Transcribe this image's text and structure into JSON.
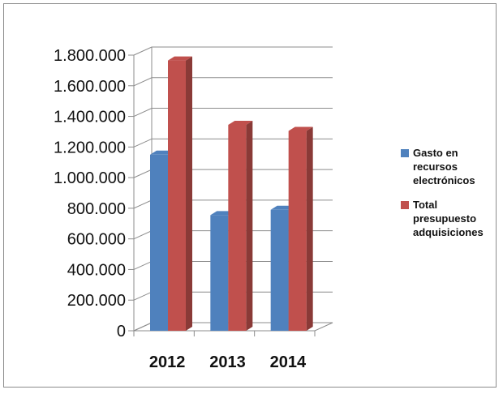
{
  "chart_data": {
    "type": "bar",
    "style": "3d-clustered-column",
    "categories": [
      "2012",
      "2013",
      "2014"
    ],
    "series": [
      {
        "name": "Gasto en recursos electrónicos",
        "values": [
          1150000,
          755000,
          790000
        ],
        "color": "#4f81bd"
      },
      {
        "name": "Total presupuesto adquisiciones",
        "values": [
          1765000,
          1345000,
          1305000
        ],
        "color": "#c0504d"
      }
    ],
    "yticks": [
      "0",
      "200.000",
      "400.000",
      "600.000",
      "800.000",
      "1.000.000",
      "1.200.000",
      "1.400.000",
      "1.600.000",
      "1.800.000"
    ],
    "ylim": [
      0,
      1800000
    ],
    "grid": true,
    "legend_position": "right",
    "title": "",
    "xlabel": "",
    "ylabel": ""
  }
}
